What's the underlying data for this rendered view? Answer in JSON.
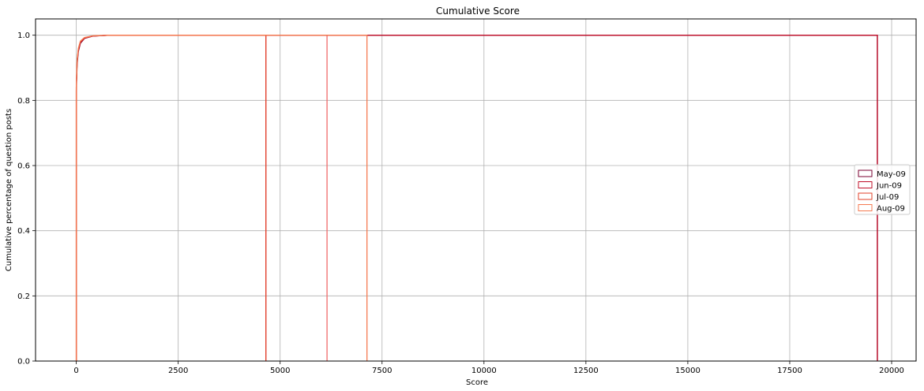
{
  "chart_data": {
    "type": "line",
    "title": "Cumulative Score",
    "xlabel": "Score",
    "ylabel": "Cumulative percentage of question posts",
    "xlim": [
      -1000,
      20600
    ],
    "ylim": [
      0,
      1.05
    ],
    "xticks": [
      0,
      2500,
      5000,
      7500,
      10000,
      12500,
      15000,
      17500,
      20000
    ],
    "yticks": [
      0.0,
      0.2,
      0.4,
      0.6,
      0.8,
      1.0
    ],
    "xtick_labels": [
      "0",
      "2500",
      "5000",
      "7500",
      "10000",
      "12500",
      "15000",
      "17500",
      "20000"
    ],
    "ytick_labels": [
      "0.0",
      "0.2",
      "0.4",
      "0.6",
      "0.8",
      "1.0"
    ],
    "grid": true,
    "legend_position": "center-right",
    "series": [
      {
        "name": "May-09",
        "color": "#7b0030",
        "points": [
          [
            0,
            0
          ],
          [
            0,
            0.83
          ],
          [
            20,
            0.91
          ],
          [
            50,
            0.95
          ],
          [
            100,
            0.975
          ],
          [
            200,
            0.99
          ],
          [
            400,
            0.997
          ],
          [
            800,
            1.0
          ],
          [
            19650,
            1.0
          ],
          [
            19650,
            0
          ]
        ]
      },
      {
        "name": "Jun-09",
        "color": "#c0102a",
        "points": [
          [
            0,
            0
          ],
          [
            0,
            0.84
          ],
          [
            20,
            0.92
          ],
          [
            50,
            0.955
          ],
          [
            100,
            0.978
          ],
          [
            200,
            0.991
          ],
          [
            400,
            0.997
          ],
          [
            800,
            1.0
          ],
          [
            19650,
            1.0
          ],
          [
            19650,
            0
          ]
        ]
      },
      {
        "name": "Jul-09",
        "color": "#e2402a",
        "points": [
          [
            0,
            0
          ],
          [
            0,
            0.84
          ],
          [
            20,
            0.92
          ],
          [
            50,
            0.957
          ],
          [
            100,
            0.98
          ],
          [
            200,
            0.992
          ],
          [
            400,
            0.998
          ],
          [
            800,
            1.0
          ],
          [
            4650,
            1.0
          ],
          [
            4650,
            0
          ]
        ]
      },
      {
        "name": "Aug-09",
        "color": "#f57a50",
        "points": [
          [
            0,
            0
          ],
          [
            0,
            0.85
          ],
          [
            20,
            0.925
          ],
          [
            50,
            0.96
          ],
          [
            100,
            0.982
          ],
          [
            200,
            0.993
          ],
          [
            400,
            0.998
          ],
          [
            800,
            1.0
          ],
          [
            7130,
            1.0
          ],
          [
            7130,
            0
          ]
        ]
      }
    ],
    "extra_lines": [
      {
        "color": "#e55a6a",
        "points": [
          [
            4650,
            0
          ],
          [
            4650,
            1.0
          ]
        ]
      },
      {
        "color": "#f06a6a",
        "points": [
          [
            6150,
            0
          ],
          [
            6150,
            1.0
          ]
        ]
      }
    ]
  }
}
